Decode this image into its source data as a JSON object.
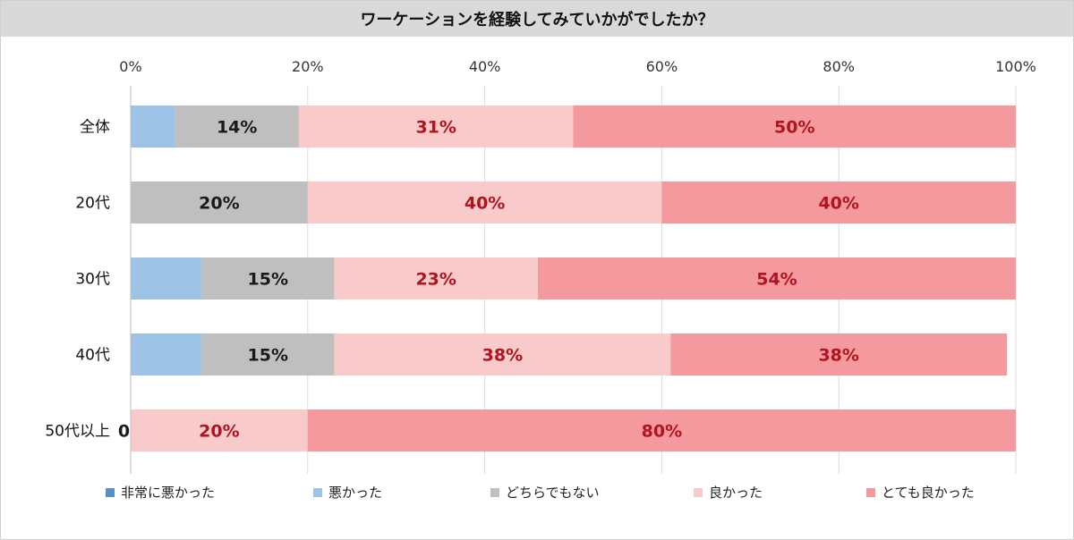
{
  "chart_data": {
    "type": "bar",
    "orientation": "horizontal",
    "stacked": "percent",
    "title": "ワーケーションを経験してみていかがでしたか？",
    "categories": [
      "全体",
      "20代",
      "30代",
      "40代",
      "50代以上"
    ],
    "series": [
      {
        "name": "非常に悪かった",
        "color": "#5b8fc9",
        "values": [
          0,
          0,
          0,
          0,
          0
        ],
        "labels": [
          "",
          "",
          "",
          "",
          "0%"
        ]
      },
      {
        "name": "悪かった",
        "color": "#9dc3e6",
        "values": [
          5,
          0,
          8,
          8,
          0
        ],
        "labels": [
          "",
          "",
          "",
          "",
          ""
        ]
      },
      {
        "name": "どちらでもない",
        "color": "#bfbfbf",
        "values": [
          14,
          20,
          15,
          15,
          0
        ],
        "labels": [
          "14%",
          "20%",
          "15%",
          "15%",
          ""
        ]
      },
      {
        "name": "良かった",
        "color": "#f8caca",
        "values": [
          31,
          40,
          23,
          38,
          20
        ],
        "labels": [
          "31%",
          "40%",
          "23%",
          "38%",
          "20%"
        ]
      },
      {
        "name": "とても良かった",
        "color": "#f4999e",
        "values": [
          50,
          40,
          54,
          38,
          80
        ],
        "labels": [
          "50%",
          "40%",
          "54%",
          "38%",
          "80%"
        ]
      }
    ],
    "xlim": [
      0,
      100
    ],
    "xticks": [
      "0%",
      "20%",
      "40%",
      "60%",
      "80%",
      "100%"
    ],
    "grid": true,
    "legend_position": "bottom"
  }
}
